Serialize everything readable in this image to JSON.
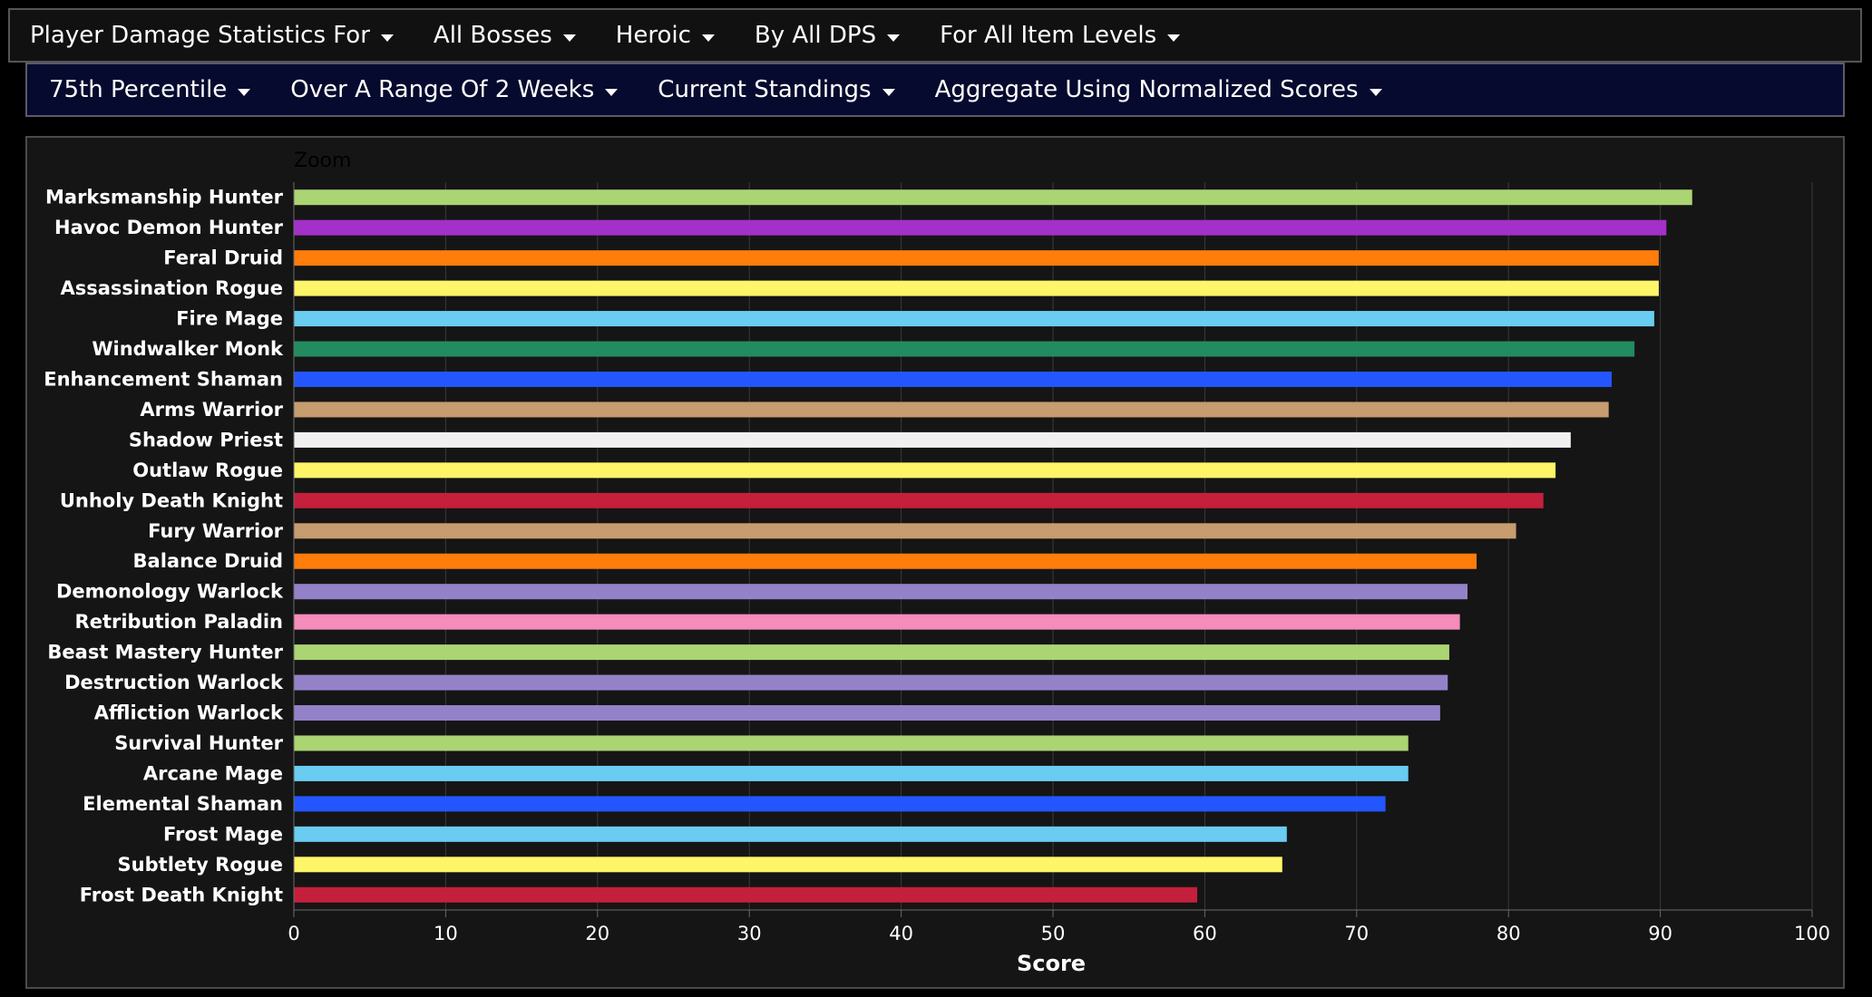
{
  "filters_row1": [
    {
      "label": "Player Damage Statistics For"
    },
    {
      "label": "All Bosses"
    },
    {
      "label": "Heroic"
    },
    {
      "label": "By All DPS"
    },
    {
      "label": "For All Item Levels"
    }
  ],
  "filters_row2": [
    {
      "label": "75th Percentile"
    },
    {
      "label": "Over A Range Of 2 Weeks"
    },
    {
      "label": "Current Standings"
    },
    {
      "label": "Aggregate Using Normalized Scores"
    }
  ],
  "zoom_label": "Zoom",
  "chart_data": {
    "type": "bar",
    "orientation": "horizontal",
    "title": "",
    "xlabel": "Score",
    "ylabel": "",
    "xlim": [
      0,
      100
    ],
    "xticks": [
      0,
      10,
      20,
      30,
      40,
      50,
      60,
      70,
      80,
      90,
      100
    ],
    "grid": true,
    "categories": [
      "Marksmanship Hunter",
      "Havoc Demon Hunter",
      "Feral Druid",
      "Assassination Rogue",
      "Fire Mage",
      "Windwalker Monk",
      "Enhancement Shaman",
      "Arms Warrior",
      "Shadow Priest",
      "Outlaw Rogue",
      "Unholy Death Knight",
      "Fury Warrior",
      "Balance Druid",
      "Demonology Warlock",
      "Retribution Paladin",
      "Beast Mastery Hunter",
      "Destruction Warlock",
      "Affliction Warlock",
      "Survival Hunter",
      "Arcane Mage",
      "Elemental Shaman",
      "Frost Mage",
      "Subtlety Rogue",
      "Frost Death Knight"
    ],
    "values": [
      92.1,
      90.4,
      89.9,
      89.9,
      89.6,
      88.3,
      86.8,
      86.6,
      84.1,
      83.1,
      82.3,
      80.5,
      77.9,
      77.3,
      76.8,
      76.1,
      76.0,
      75.5,
      73.4,
      73.4,
      71.9,
      65.4,
      65.1,
      59.5
    ],
    "colors": [
      "#abd473",
      "#a330c9",
      "#ff7d0a",
      "#fff569",
      "#69ccf0",
      "#238b60",
      "#2456ff",
      "#c79c6e",
      "#f0f0f0",
      "#fff569",
      "#c41f3b",
      "#c79c6e",
      "#ff7d0a",
      "#9482c9",
      "#f58cba",
      "#abd473",
      "#9482c9",
      "#9482c9",
      "#abd473",
      "#69ccf0",
      "#2456ff",
      "#69ccf0",
      "#fff569",
      "#c41f3b"
    ]
  }
}
